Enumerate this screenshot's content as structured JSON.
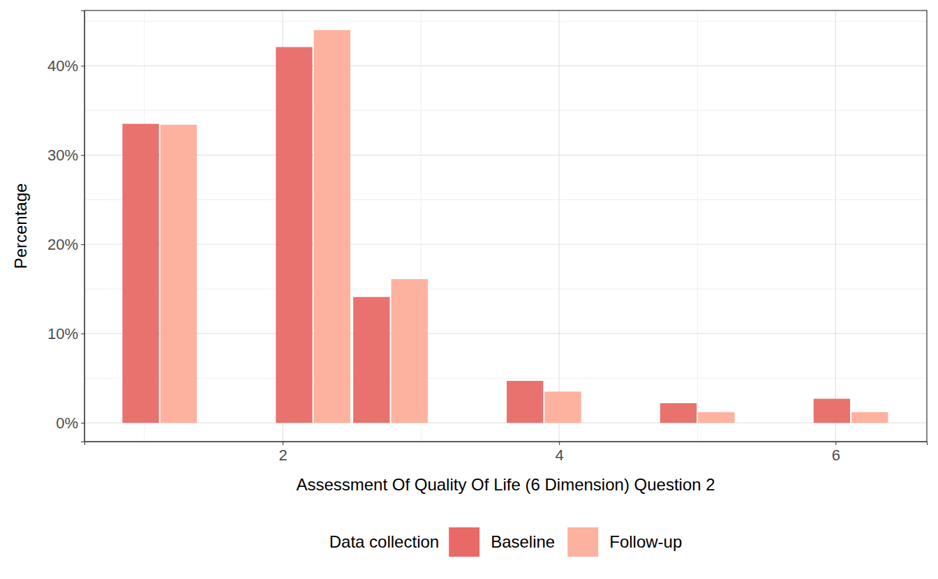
{
  "chart_data": {
    "type": "bar",
    "x_label": "Assessment Of Quality Of Life (6 Dimension) Question 2",
    "y_label": "Percentage",
    "legend_title": "Data collection",
    "x": [
      1.11,
      2.22,
      2.78,
      3.89,
      5.0,
      6.11
    ],
    "series": [
      {
        "name": "Baseline",
        "color": "#E86A67",
        "values": [
          33.5,
          42.1,
          14.1,
          4.7,
          2.2,
          2.7
        ]
      },
      {
        "name": "Follow-up",
        "color": "#FCB29E",
        "values": [
          33.4,
          44.0,
          16.1,
          3.5,
          1.2,
          1.2
        ]
      }
    ],
    "xlim": [
      0.566,
      6.66
    ],
    "xticks": [
      2,
      4,
      6
    ],
    "ylim": [
      -2.1,
      46.2
    ],
    "yticks": [
      {
        "value": 0,
        "label": "0%"
      },
      {
        "value": 10,
        "label": "10%"
      },
      {
        "value": 20,
        "label": "20%"
      },
      {
        "value": 30,
        "label": "30%"
      },
      {
        "value": 40,
        "label": "40%"
      }
    ],
    "grid": true,
    "legend": "bottom"
  }
}
